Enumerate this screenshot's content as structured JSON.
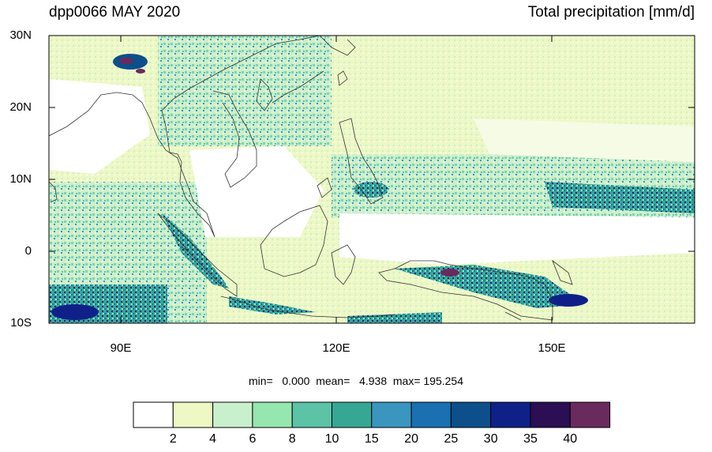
{
  "title": {
    "left": "dpp0066 MAY 2020",
    "right": "Total precipitation [mm/d]"
  },
  "map": {
    "lat_ticks": [
      "30N",
      "20N",
      "10N",
      "0",
      "10S"
    ],
    "lon_ticks": [
      "90E",
      "120E",
      "150E"
    ],
    "lon_range": [
      80,
      170
    ],
    "lat_range": [
      -10,
      30
    ],
    "coastline_color": "#333333"
  },
  "stats": {
    "text": "min=   0.000  mean=   4.938  max= 195.254",
    "min": 0.0,
    "mean": 4.938,
    "max": 195.254
  },
  "colorbar": {
    "levels": [
      "2",
      "4",
      "6",
      "8",
      "10",
      "15",
      "20",
      "25",
      "30",
      "35",
      "40"
    ],
    "colors": [
      "#ffffff",
      "#edf8c4",
      "#c8f0cc",
      "#96e6b0",
      "#5cc3a6",
      "#36a795",
      "#3a96bf",
      "#1a70b0",
      "#0c4f8b",
      "#0f2189",
      "#2b0e54",
      "#6a2a5e"
    ]
  }
}
